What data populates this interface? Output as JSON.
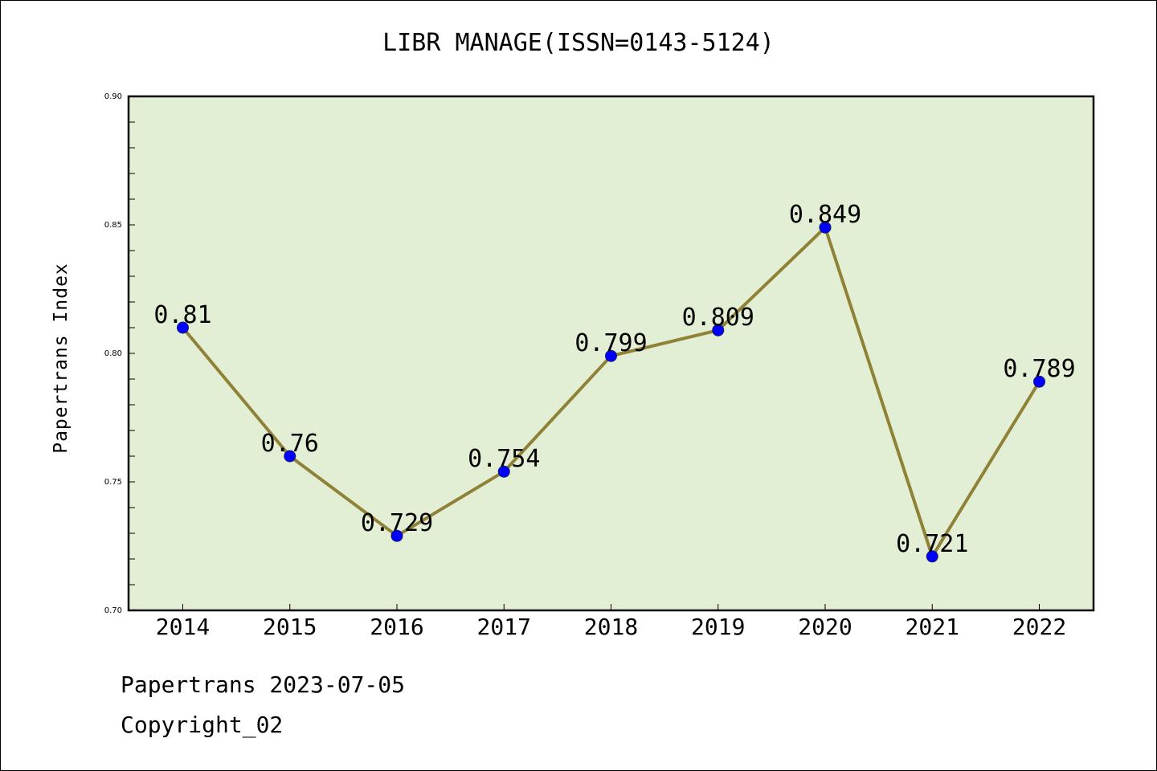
{
  "chart_data": {
    "type": "line",
    "title": "LIBR MANAGE(ISSN=0143-5124)",
    "ylabel": "Papertrans Index",
    "xlabel": "",
    "categories": [
      "2014",
      "2015",
      "2016",
      "2017",
      "2018",
      "2019",
      "2020",
      "2021",
      "2022"
    ],
    "series": [
      {
        "values": [
          0.81,
          0.76,
          0.729,
          0.754,
          0.799,
          0.809,
          0.849,
          0.721,
          0.789
        ],
        "labels": [
          "0.81",
          "0.76",
          "0.729",
          "0.754",
          "0.799",
          "0.809",
          "0.849",
          "0.721",
          "0.789"
        ]
      }
    ],
    "ylim": [
      0.7,
      0.9
    ],
    "yticks": [
      "0.70",
      "0.75",
      "0.80",
      "0.85",
      "0.90"
    ],
    "grid": false,
    "colors": {
      "plot_background": "#e2efd4",
      "line": "#8f8237",
      "marker": "#0000ff"
    }
  },
  "footer": {
    "source": "Papertrans 2023-07-05",
    "copyright": "Copyright_02"
  }
}
